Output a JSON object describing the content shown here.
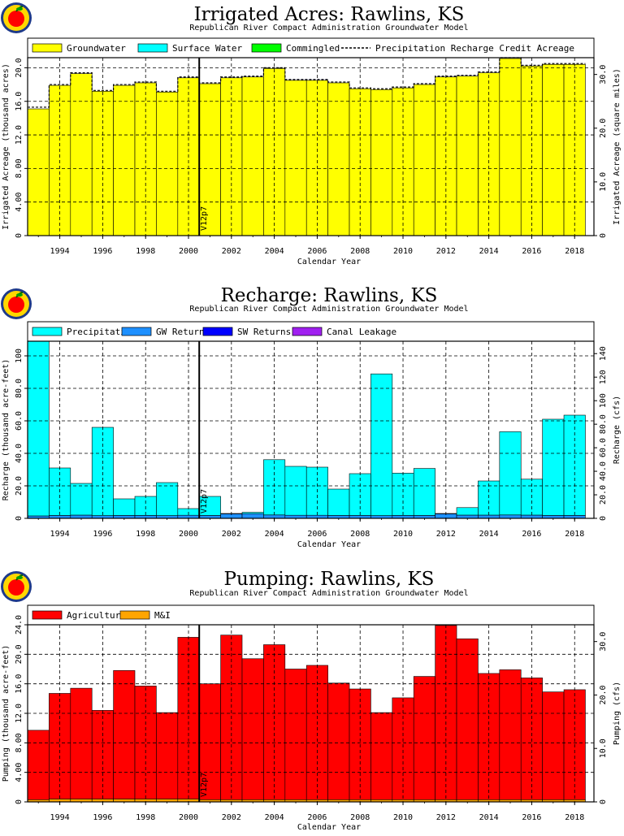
{
  "chart_data": [
    {
      "type": "bar",
      "stacked": true,
      "title": "Irrigated Acres: Rawlins, KS",
      "subtitle": "Republican River Compact Administration Groundwater Model",
      "xlabel": "Calendar Year",
      "ylabel": "Irrigated Acreage (thousand acres)",
      "ylabel_right": "Irrigated Acreage (square miles)",
      "x": [
        1993,
        1994,
        1995,
        1996,
        1997,
        1998,
        1999,
        2000,
        2001,
        2002,
        2003,
        2004,
        2005,
        2006,
        2007,
        2008,
        2009,
        2010,
        2011,
        2012,
        2013,
        2014,
        2015,
        2016,
        2017,
        2018
      ],
      "x_ticks": [
        "1994",
        "1996",
        "1998",
        "2000",
        "2002",
        "2004",
        "2006",
        "2008",
        "2010",
        "2012",
        "2014",
        "2016",
        "2018"
      ],
      "ylim": [
        0,
        21.2
      ],
      "y_ticks": [
        "0",
        "4.00",
        "8.00",
        "12.0",
        "16.0",
        "20.0"
      ],
      "y_ticks_right": [
        "0",
        "10.0",
        "20.0",
        "30.0"
      ],
      "right_scale": 1.5625,
      "grid": true,
      "legend": [
        {
          "name": "Groundwater",
          "color": "#ffff00"
        },
        {
          "name": "Surface Water",
          "color": "#00ffff"
        },
        {
          "name": "Commingled",
          "color": "#00ff00"
        },
        {
          "name": "Precipitation Recharge Credit Acreage",
          "style": "dashed"
        }
      ],
      "series": [
        {
          "name": "Groundwater",
          "color": "#ffff00",
          "values": [
            15.1,
            17.9,
            19.3,
            17.2,
            17.9,
            18.2,
            17.1,
            18.8,
            18.1,
            18.8,
            18.9,
            19.9,
            18.5,
            18.5,
            18.2,
            17.5,
            17.4,
            17.6,
            18.0,
            18.9,
            19.0,
            19.4,
            21.1,
            20.2,
            20.4,
            20.4
          ]
        },
        {
          "name": "Surface Water",
          "color": "#00ffff",
          "values": [
            0,
            0,
            0,
            0,
            0,
            0,
            0,
            0,
            0,
            0,
            0,
            0,
            0,
            0,
            0,
            0,
            0,
            0,
            0,
            0,
            0,
            0,
            0,
            0,
            0,
            0
          ]
        },
        {
          "name": "Commingled",
          "color": "#00ff00",
          "values": [
            0,
            0,
            0,
            0,
            0,
            0,
            0,
            0,
            0,
            0,
            0,
            0,
            0,
            0,
            0,
            0,
            0,
            0,
            0,
            0,
            0,
            0,
            0,
            0,
            0,
            0
          ]
        }
      ],
      "line_series": {
        "name": "Precipitation Recharge Credit Acreage",
        "values": [
          15.3,
          18.0,
          19.4,
          17.3,
          18.0,
          18.3,
          17.2,
          18.9,
          18.2,
          18.9,
          19.0,
          20.0,
          18.6,
          18.6,
          18.3,
          17.6,
          17.5,
          17.7,
          18.1,
          19.0,
          19.1,
          19.5,
          21.2,
          20.3,
          20.5,
          20.5
        ]
      },
      "marker": {
        "x": 2000.5,
        "label": "V12p7"
      }
    },
    {
      "type": "bar",
      "stacked": true,
      "title": "Recharge: Rawlins, KS",
      "subtitle": "Republican River Compact Administration Groundwater Model",
      "xlabel": "Calendar Year",
      "ylabel": "Recharge (thousand acre-feet)",
      "ylabel_right": "Recharge (cfs)",
      "x": [
        1993,
        1994,
        1995,
        1996,
        1997,
        1998,
        1999,
        2000,
        2001,
        2002,
        2003,
        2004,
        2005,
        2006,
        2007,
        2008,
        2009,
        2010,
        2011,
        2012,
        2013,
        2014,
        2015,
        2016,
        2017,
        2018
      ],
      "x_ticks": [
        "1994",
        "1996",
        "1998",
        "2000",
        "2002",
        "2004",
        "2006",
        "2008",
        "2010",
        "2012",
        "2014",
        "2016",
        "2018"
      ],
      "ylim": [
        0,
        109
      ],
      "y_ticks": [
        "0",
        "20.0",
        "40.0",
        "60.0",
        "80.0",
        "100"
      ],
      "y_ticks_right": [
        "0",
        "20.0",
        "40.0",
        "60.0",
        "80.0",
        "100",
        "120",
        "140"
      ],
      "right_scale": 1.381,
      "grid": true,
      "legend": [
        {
          "name": "Precipitation",
          "color": "#00ffff"
        },
        {
          "name": "GW Returns",
          "color": "#1e90ff"
        },
        {
          "name": "SW Returns",
          "color": "#0000ff"
        },
        {
          "name": "Canal Leakage",
          "color": "#a020f0"
        }
      ],
      "series": [
        {
          "name": "GW Returns",
          "color": "#1e90ff",
          "values": [
            1.5,
            1.8,
            2.0,
            1.7,
            1.8,
            1.8,
            1.7,
            1.9,
            1.8,
            2.8,
            2.9,
            2.1,
            1.9,
            1.9,
            1.8,
            1.8,
            1.7,
            1.8,
            1.8,
            2.8,
            2.0,
            2.0,
            2.1,
            2.0,
            1.8,
            1.8
          ]
        },
        {
          "name": "SW Returns",
          "color": "#0000ff",
          "values": [
            0,
            0,
            0,
            0,
            0,
            0,
            0,
            0,
            0,
            0,
            0,
            0,
            0,
            0,
            0,
            0,
            0,
            0,
            0,
            0,
            0,
            0,
            0,
            0,
            0,
            0
          ]
        },
        {
          "name": "Canal Leakage",
          "color": "#a020f0",
          "values": [
            0,
            0,
            0,
            0,
            0,
            0,
            0,
            0,
            0,
            0,
            0,
            0,
            0,
            0,
            0,
            0,
            0,
            0,
            0,
            0,
            0,
            0,
            0,
            0,
            0,
            0
          ]
        },
        {
          "name": "Precipitation",
          "color": "#00ffff",
          "values": [
            107.5,
            29.2,
            19.5,
            54.3,
            10.2,
            11.7,
            20.3,
            4.1,
            11.7,
            0.2,
            0.8,
            34.0,
            30.1,
            29.6,
            16.2,
            25.7,
            87.2,
            26.0,
            28.9,
            0.2,
            4.6,
            21.0,
            51.2,
            22.1,
            59.2,
            61.7
          ]
        }
      ],
      "marker": {
        "x": 2000.5,
        "label": "V12p7"
      }
    },
    {
      "type": "bar",
      "stacked": true,
      "title": "Pumping: Rawlins, KS",
      "subtitle": "Republican River Compact Administration Groundwater Model",
      "xlabel": "Calendar Year",
      "ylabel": "Pumping (thousand acre-feet)",
      "ylabel_right": "Pumping (cfs)",
      "x": [
        1993,
        1994,
        1995,
        1996,
        1997,
        1998,
        1999,
        2000,
        2001,
        2002,
        2003,
        2004,
        2005,
        2006,
        2007,
        2008,
        2009,
        2010,
        2011,
        2012,
        2013,
        2014,
        2015,
        2016,
        2017,
        2018
      ],
      "x_ticks": [
        "1994",
        "1996",
        "1998",
        "2000",
        "2002",
        "2004",
        "2006",
        "2008",
        "2010",
        "2012",
        "2014",
        "2016",
        "2018"
      ],
      "ylim": [
        0,
        24
      ],
      "y_ticks": [
        "0",
        "4.00",
        "8.00",
        "12.0",
        "16.0",
        "20.0",
        "24.0"
      ],
      "y_ticks_right": [
        "0",
        "10.0",
        "20.0",
        "30.0"
      ],
      "right_scale": 1.381,
      "grid": true,
      "legend": [
        {
          "name": "Agricultural",
          "color": "#ff0000"
        },
        {
          "name": "M&I",
          "color": "#ffa500"
        }
      ],
      "series": [
        {
          "name": "M&I",
          "color": "#ffa500",
          "values": [
            0.3,
            0.4,
            0.4,
            0.4,
            0.4,
            0.4,
            0.4,
            0.4,
            0.3,
            0.3,
            0.3,
            0.3,
            0.3,
            0.3,
            0.3,
            0.3,
            0.3,
            0.3,
            0.3,
            0.3,
            0.3,
            0.3,
            0.3,
            0.3,
            0.3,
            0.3
          ]
        },
        {
          "name": "Agricultural",
          "color": "#ff0000",
          "values": [
            9.4,
            14.3,
            15.0,
            12.0,
            17.4,
            15.3,
            11.7,
            21.9,
            15.7,
            22.3,
            19.1,
            21.0,
            17.7,
            18.2,
            15.8,
            15.0,
            11.8,
            13.8,
            16.7,
            23.6,
            21.8,
            17.1,
            17.6,
            16.5,
            14.6,
            14.9
          ]
        }
      ],
      "marker": {
        "x": 2000.5,
        "label": "V12p7"
      }
    }
  ]
}
